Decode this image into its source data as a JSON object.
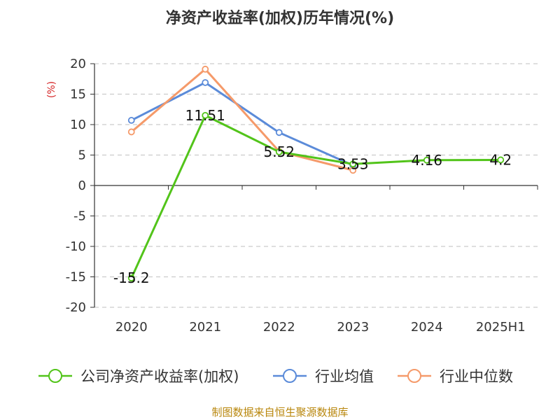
{
  "chart_data": {
    "type": "line",
    "title": "净资产收益率(加权)历年情况(%)",
    "ylabel": "(%)",
    "categories": [
      "2020",
      "2021",
      "2022",
      "2023",
      "2024",
      "2025H1"
    ],
    "y_ticks": [
      20,
      15,
      10,
      5,
      0,
      -5,
      -10,
      -15,
      -20
    ],
    "ylim": [
      -20,
      20
    ],
    "grid": true,
    "legend_position": "bottom",
    "series": [
      {
        "name": "公司净资产收益率(加权)",
        "color": "#52c41a",
        "values": [
          -15.2,
          11.51,
          5.52,
          3.53,
          4.16,
          4.2
        ],
        "labels": [
          "-15.2",
          "11.51",
          "5.52",
          "3.53",
          "4.16",
          "4.2"
        ]
      },
      {
        "name": "行业均值",
        "color": "#5b8bd9",
        "values": [
          10.7,
          16.9,
          8.7,
          3.3,
          null,
          null
        ]
      },
      {
        "name": "行业中位数",
        "color": "#f59a6a",
        "values": [
          8.8,
          19.1,
          5.6,
          2.5,
          null,
          null
        ]
      }
    ]
  },
  "source": "制图数据来自恒生聚源数据库"
}
